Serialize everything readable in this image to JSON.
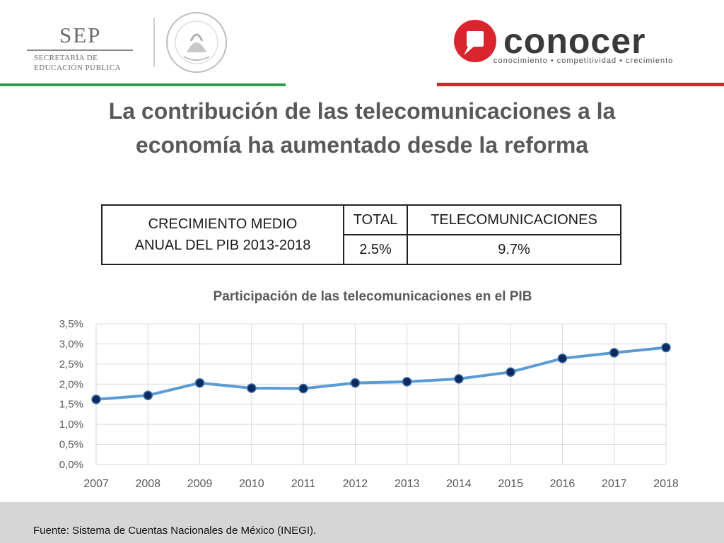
{
  "header": {
    "sep_logo_word": "SEP",
    "sep_name_line1": "SECRETARÍA DE",
    "sep_name_line2": "EDUCACIÓN PÚBLICA",
    "conocer_word": "conocer",
    "conocer_tagline": "conocimiento • competitividad • crecimiento",
    "green": "#2f9a46",
    "red": "#d9262e"
  },
  "title_line1": "La contribución de las telecomunicaciones a la",
  "title_line2": "economía ha aumentado desde la reforma",
  "table": {
    "row_label_line1": "CRECIMIENTO MEDIO",
    "row_label_line2": "ANUAL DEL PIB 2013-2018",
    "col_total": "TOTAL",
    "col_telecom": "TELECOMUNICACIONES",
    "val_total": "2.5%",
    "val_telecom": "9.7%"
  },
  "chart_data": {
    "type": "line",
    "title": "Participación de las telecomunicaciones en el PIB",
    "xlabel": "",
    "ylabel": "",
    "categories": [
      "2007",
      "2008",
      "2009",
      "2010",
      "2011",
      "2012",
      "2013",
      "2014",
      "2015",
      "2016",
      "2017",
      "2018"
    ],
    "series": [
      {
        "values": [
          1.62,
          1.72,
          2.03,
          1.9,
          1.89,
          2.03,
          2.06,
          2.13,
          2.3,
          2.64,
          2.78,
          2.91
        ]
      }
    ],
    "ylim": [
      0,
      3.5
    ],
    "yticks": [
      "0,0%",
      "0,5%",
      "1,0%",
      "1,5%",
      "2,0%",
      "2,5%",
      "3,0%",
      "3,5%"
    ],
    "grid": true,
    "line_color": "#5b9bd5",
    "marker_color": "#0d2a5c"
  },
  "footer": {
    "source": "Fuente: Sistema de Cuentas Nacionales de México (INEGI)."
  }
}
